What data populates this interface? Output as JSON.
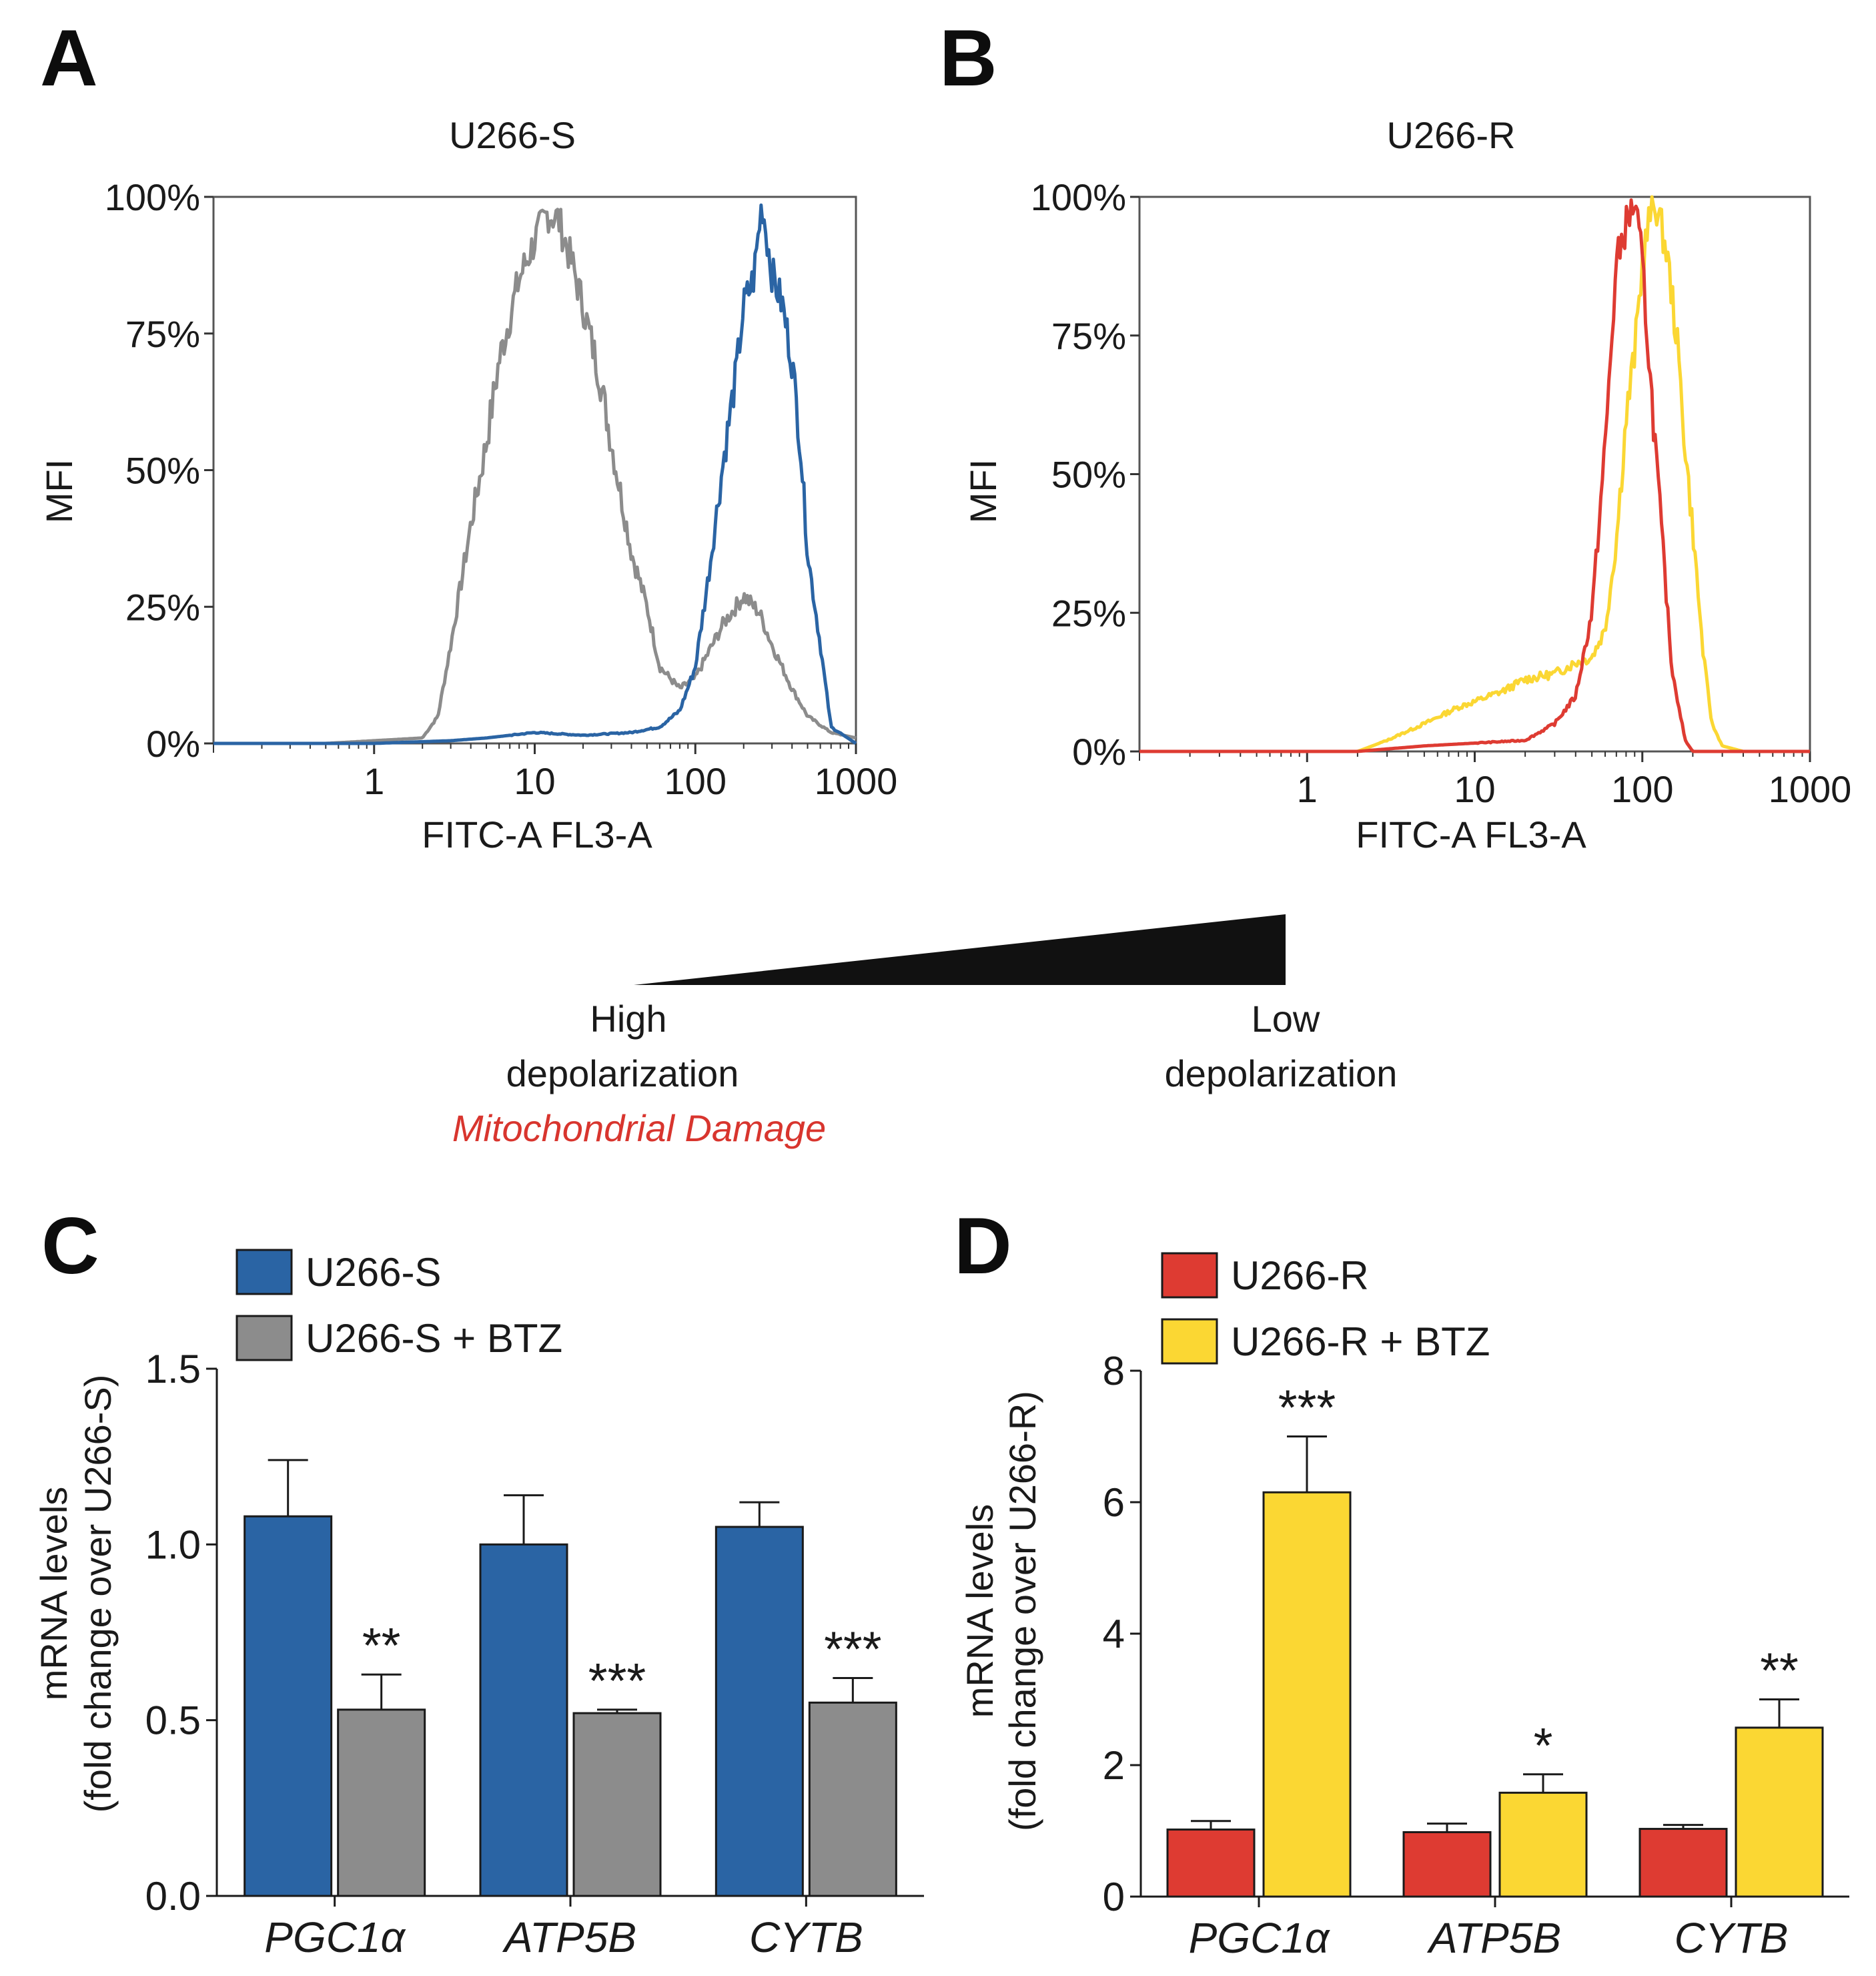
{
  "panels": {
    "a": {
      "letter": "A",
      "title": "U266-S",
      "ylabel": "MFI",
      "xlabel": "FITC-A FL3-A"
    },
    "b": {
      "letter": "B",
      "title": "U266-R",
      "ylabel": "MFI",
      "xlabel": "FITC-A FL3-A"
    },
    "c": {
      "letter": "C",
      "ylabel_line1": "mRNA levels",
      "ylabel_line2": "(fold change over U266-S)"
    },
    "d": {
      "letter": "D",
      "ylabel_line1": "mRNA levels",
      "ylabel_line2": "(fold change over U266-R)"
    }
  },
  "legend_c": [
    "U266-S",
    "U266-S + BTZ"
  ],
  "legend_d": [
    "U266-R",
    "U266-R + BTZ"
  ],
  "scale": {
    "left_label_line1": "High",
    "left_label_line2": "depolarization",
    "left_note": "Mitochondrial Damage",
    "right_label_line1": "Low",
    "right_label_line2": "depolarization"
  },
  "colors": {
    "u266s": "#2a64a4",
    "u266s_btz": "#8c8c8c",
    "u266r": "#de3b32",
    "u266r_btz": "#fbd733",
    "damage_text": "#d8352e"
  },
  "chart_data": [
    {
      "id": "A",
      "type": "line",
      "title": "U266-S",
      "xlabel": "FITC-A FL3-A",
      "ylabel": "MFI",
      "xscale": "log",
      "xlim": [
        0.1,
        1000
      ],
      "ylim": [
        0,
        100
      ],
      "xticks": [
        1,
        10,
        100,
        1000
      ],
      "yticks": [
        0,
        25,
        50,
        75,
        100
      ],
      "ytick_labels": [
        "0%",
        "25%",
        "50%",
        "75%",
        "100%"
      ],
      "series": [
        {
          "name": "U266-S + BTZ",
          "color": "#8c8c8c",
          "x": [
            0.1,
            0.5,
            1,
            2,
            2.5,
            3,
            4,
            5,
            6,
            8,
            10,
            12,
            14,
            17,
            20,
            25,
            30,
            40,
            50,
            60,
            80,
            100,
            150,
            200,
            250,
            300,
            400,
            500,
            700,
            1000
          ],
          "y": [
            0,
            0,
            0.5,
            1,
            5,
            18,
            40,
            55,
            70,
            85,
            92,
            97,
            96,
            88,
            80,
            68,
            55,
            35,
            25,
            14,
            10,
            12,
            22,
            27,
            24,
            18,
            10,
            5,
            2,
            1
          ]
        },
        {
          "name": "U266-S",
          "color": "#2a64a4",
          "x": [
            0.1,
            1,
            3,
            5,
            10,
            20,
            40,
            60,
            80,
            100,
            120,
            150,
            180,
            200,
            230,
            260,
            300,
            350,
            400,
            450,
            500,
            600,
            700,
            1000
          ],
          "y": [
            0,
            0,
            0.5,
            1,
            2,
            1.5,
            2,
            3,
            6,
            14,
            30,
            52,
            68,
            80,
            85,
            99,
            86,
            80,
            70,
            55,
            35,
            18,
            3,
            0
          ]
        }
      ]
    },
    {
      "id": "B",
      "type": "line",
      "title": "U266-R",
      "xlabel": "FITC-A FL3-A",
      "ylabel": "MFI",
      "xscale": "log",
      "xlim": [
        0.1,
        1000
      ],
      "ylim": [
        0,
        100
      ],
      "xticks": [
        1,
        10,
        100,
        1000
      ],
      "yticks": [
        0,
        25,
        50,
        75,
        100
      ],
      "ytick_labels": [
        "0%",
        "25%",
        "50%",
        "75%",
        "100%"
      ],
      "series": [
        {
          "name": "U266-R + BTZ",
          "color": "#fbd733",
          "x": [
            0.1,
            2,
            3,
            5,
            8,
            10,
            15,
            20,
            30,
            40,
            50,
            60,
            70,
            80,
            90,
            100,
            110,
            120,
            140,
            160,
            180,
            200,
            230,
            260,
            300,
            400,
            1000
          ],
          "y": [
            0,
            0,
            2,
            5,
            8,
            9,
            11,
            13,
            14,
            16,
            17,
            22,
            38,
            60,
            72,
            88,
            96,
            99,
            90,
            75,
            55,
            40,
            18,
            5,
            1,
            0,
            0
          ]
        },
        {
          "name": "U266-R",
          "color": "#de3b32",
          "x": [
            0.1,
            2,
            5,
            10,
            20,
            30,
            40,
            50,
            60,
            70,
            80,
            90,
            100,
            110,
            130,
            150,
            180,
            200,
            1000
          ],
          "y": [
            0,
            0,
            1,
            1.5,
            2,
            5,
            10,
            25,
            55,
            88,
            95,
            99,
            88,
            70,
            40,
            15,
            2,
            0,
            0
          ]
        }
      ]
    },
    {
      "id": "C",
      "type": "bar",
      "categories": [
        "PGC1α",
        "ATP5B",
        "CYTB"
      ],
      "xlabel": "",
      "ylabel": "mRNA levels (fold change over U266-S)",
      "ylim": [
        0,
        1.5
      ],
      "yticks": [
        0,
        0.5,
        1,
        1.5
      ],
      "ytick_labels": [
        "0.0",
        "0.5",
        "1.0",
        "1.5"
      ],
      "series": [
        {
          "name": "U266-S",
          "color": "#2a64a4",
          "values": [
            1.08,
            1.0,
            1.05
          ],
          "errors": [
            0.16,
            0.14,
            0.07
          ],
          "significance": [
            "",
            "",
            ""
          ]
        },
        {
          "name": "U266-S + BTZ",
          "color": "#8c8c8c",
          "values": [
            0.53,
            0.52,
            0.55
          ],
          "errors": [
            0.1,
            0.01,
            0.07
          ],
          "significance": [
            "**",
            "***",
            "***"
          ]
        }
      ]
    },
    {
      "id": "D",
      "type": "bar",
      "categories": [
        "PGC1α",
        "ATP5B",
        "CYTB"
      ],
      "xlabel": "",
      "ylabel": "mRNA levels (fold change over U266-R)",
      "ylim": [
        0,
        8
      ],
      "yticks": [
        0,
        2,
        4,
        6,
        8
      ],
      "ytick_labels": [
        "0",
        "2",
        "4",
        "6",
        "8"
      ],
      "series": [
        {
          "name": "U266-R",
          "color": "#de3b32",
          "values": [
            1.02,
            0.98,
            1.03
          ],
          "errors": [
            0.13,
            0.13,
            0.06
          ],
          "significance": [
            "",
            "",
            ""
          ]
        },
        {
          "name": "U266-R + BTZ",
          "color": "#fbd733",
          "values": [
            6.15,
            1.58,
            2.57
          ],
          "errors": [
            0.85,
            0.28,
            0.43
          ],
          "significance": [
            "***",
            "*",
            "**"
          ]
        }
      ]
    }
  ]
}
